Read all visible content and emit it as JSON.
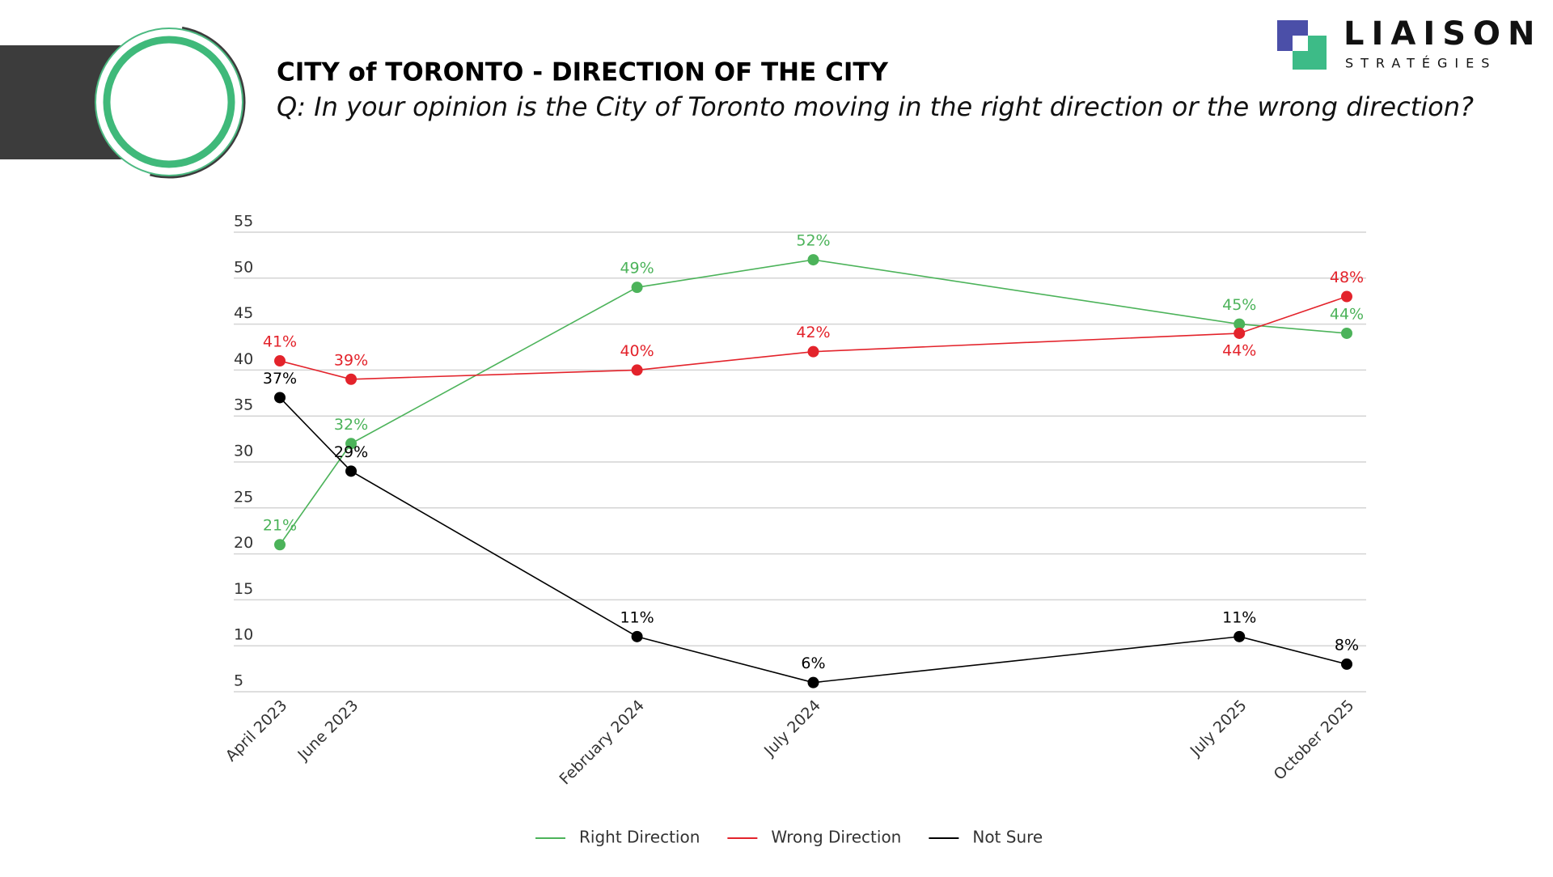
{
  "brand": {
    "name": "LIAISON",
    "tagline": "STRATÉGIES"
  },
  "chart_data": {
    "type": "line",
    "title": "CITY of TORONTO - DIRECTION OF THE CITY",
    "subtitle": "Q: In your opinion is the City of Toronto moving in the right direction or the wrong direction?",
    "x": [
      "April 2023",
      "June 2023",
      "February 2024",
      "July 2024",
      "July 2025",
      "October 2025"
    ],
    "series": [
      {
        "name": "Right Direction",
        "color": "#4cb35a",
        "values": [
          21,
          32,
          49,
          52,
          45,
          44
        ],
        "value_labels": [
          "21%",
          "32%",
          "49%",
          "52%",
          "45%",
          "44%"
        ]
      },
      {
        "name": "Wrong Direction",
        "color": "#e3232b",
        "values": [
          41,
          39,
          40,
          42,
          44,
          48
        ],
        "value_labels": [
          "41%",
          "39%",
          "40%",
          "42%",
          "44%",
          "48%"
        ]
      },
      {
        "name": "Not Sure",
        "color": "#000000",
        "values": [
          37,
          29,
          11,
          6,
          11,
          8
        ],
        "value_labels": [
          "37%",
          "29%",
          "11%",
          "6%",
          "11%",
          "8%"
        ]
      }
    ],
    "ylim": [
      5,
      55
    ],
    "yticks": [
      5,
      10,
      15,
      20,
      25,
      30,
      35,
      40,
      45,
      50,
      55
    ],
    "grid": true,
    "legend": "bottom"
  }
}
